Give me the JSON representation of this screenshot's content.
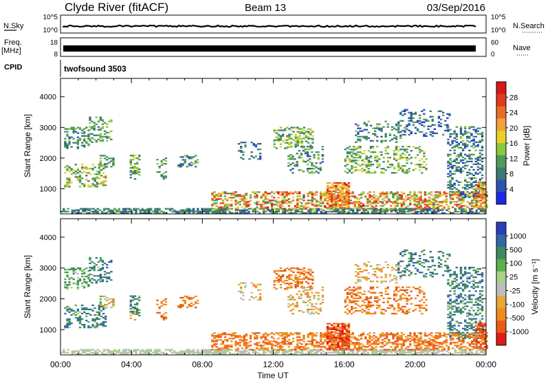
{
  "header": {
    "station": "Clyde River (fitACF)",
    "beam": "Beam 13",
    "date": "03/Sep/2016"
  },
  "strips": {
    "nsky": {
      "label": "N.Sky",
      "ticks_left": [
        "10^5",
        "10^0"
      ]
    },
    "nsearch": {
      "label": "N.Search",
      "ticks_right": [
        "10^5",
        "10^0"
      ]
    },
    "freq": {
      "label_line1": "Freq.",
      "label_line2": "[MHz]",
      "ticks_left": [
        "18",
        "8"
      ]
    },
    "nave": {
      "label": "Nave",
      "ticks_right": [
        "60",
        "0"
      ]
    },
    "cpid": {
      "label": "CPID",
      "value": "twofsound 3503"
    }
  },
  "chart_data": [
    {
      "type": "heatmap",
      "panel": "power",
      "ylabel": "Slant Range [km]",
      "xlabel": "",
      "x_ticks": [
        "00:00",
        "04:00",
        "08:00",
        "12:00",
        "16:00",
        "20:00",
        "00:00"
      ],
      "y_ticks": [
        1000,
        2000,
        3000,
        4000
      ],
      "ylim": [
        180,
        4600
      ],
      "xlim_hours": [
        0,
        24
      ],
      "colorbar": {
        "label": "Power [dB]",
        "ticks": [
          "4",
          "8",
          "12",
          "16",
          "20",
          "24",
          "28"
        ],
        "colors": [
          "#1e2ae0",
          "#2c52b0",
          "#3a7a72",
          "#4f9a58",
          "#8dc63f",
          "#e8d22a",
          "#f2a23a",
          "#ea6d27",
          "#e03a1e",
          "#d61919"
        ]
      }
    },
    {
      "type": "heatmap",
      "panel": "velocity",
      "ylabel": "Slant Range [km]",
      "xlabel": "Time UT",
      "x_ticks": [
        "00:00",
        "04:00",
        "08:00",
        "12:00",
        "16:00",
        "20:00",
        "00:00"
      ],
      "y_ticks": [
        1000,
        2000,
        3000,
        4000
      ],
      "ylim": [
        180,
        4600
      ],
      "xlim_hours": [
        0,
        24
      ],
      "colorbar": {
        "label": "Velocity [m s⁻¹]",
        "ticks": [
          "1000",
          "500",
          "100",
          "25",
          "-25",
          "-100",
          "-500",
          "-1000"
        ],
        "colors": [
          "#2a3fb8",
          "#3566a8",
          "#3f8a5e",
          "#59b04c",
          "#a8d18a",
          "#bdbdbd",
          "#e8a53a",
          "#f08a1e",
          "#ea5a17",
          "#e01b17"
        ]
      }
    }
  ],
  "echo_regions": [
    {
      "t0": 0.0,
      "t1": 24.0,
      "r0": 190,
      "r1": 330,
      "p": [
        6,
        14
      ],
      "v": [
        -25,
        25
      ],
      "d": 0.65
    },
    {
      "t0": 0.2,
      "t1": 2.6,
      "r0": 1050,
      "r1": 1800,
      "p": [
        8,
        20
      ],
      "v": [
        -25,
        500
      ],
      "d": 0.4
    },
    {
      "t0": 0.2,
      "t1": 1.6,
      "r0": 2300,
      "r1": 3000,
      "p": [
        6,
        14
      ],
      "v": [
        -25,
        100
      ],
      "d": 0.35
    },
    {
      "t0": 1.6,
      "t1": 2.9,
      "r0": 2500,
      "r1": 3350,
      "p": [
        8,
        16
      ],
      "v": [
        -25,
        500
      ],
      "d": 0.3
    },
    {
      "t0": 2.2,
      "t1": 3.0,
      "r0": 1700,
      "r1": 2100,
      "p": [
        8,
        16
      ],
      "v": [
        -100,
        100
      ],
      "d": 0.3
    },
    {
      "t0": 3.9,
      "t1": 4.5,
      "r0": 1300,
      "r1": 2100,
      "p": [
        8,
        18
      ],
      "v": [
        -100,
        500
      ],
      "d": 0.45
    },
    {
      "t0": 5.4,
      "t1": 6.0,
      "r0": 1300,
      "r1": 2000,
      "p": [
        8,
        16
      ],
      "v": [
        -500,
        -25
      ],
      "d": 0.35
    },
    {
      "t0": 6.6,
      "t1": 7.8,
      "r0": 1700,
      "r1": 2100,
      "p": [
        6,
        14
      ],
      "v": [
        -500,
        -25
      ],
      "d": 0.3
    },
    {
      "t0": 10.0,
      "t1": 11.3,
      "r0": 1950,
      "r1": 2500,
      "p": [
        4,
        12
      ],
      "v": [
        -100,
        25
      ],
      "d": 0.22
    },
    {
      "t0": 8.5,
      "t1": 24.0,
      "r0": 330,
      "r1": 900,
      "p": [
        10,
        28
      ],
      "v": [
        -500,
        -25
      ],
      "d": 0.5
    },
    {
      "t0": 12.0,
      "t1": 14.2,
      "r0": 2300,
      "r1": 3000,
      "p": [
        8,
        18
      ],
      "v": [
        -500,
        -25
      ],
      "d": 0.35
    },
    {
      "t0": 12.8,
      "t1": 14.8,
      "r0": 1500,
      "r1": 2400,
      "p": [
        6,
        16
      ],
      "v": [
        -100,
        25
      ],
      "d": 0.28
    },
    {
      "t0": 15.0,
      "t1": 16.2,
      "r0": 360,
      "r1": 1200,
      "p": [
        16,
        28
      ],
      "v": [
        -1000,
        -100
      ],
      "d": 0.7
    },
    {
      "t0": 16.0,
      "t1": 20.6,
      "r0": 1500,
      "r1": 2400,
      "p": [
        8,
        18
      ],
      "v": [
        -500,
        -25
      ],
      "d": 0.33
    },
    {
      "t0": 16.6,
      "t1": 19.2,
      "r0": 2500,
      "r1": 3200,
      "p": [
        6,
        14
      ],
      "v": [
        -100,
        25
      ],
      "d": 0.22
    },
    {
      "t0": 19.0,
      "t1": 22.0,
      "r0": 2700,
      "r1": 3600,
      "p": [
        4,
        12
      ],
      "v": [
        25,
        500
      ],
      "d": 0.25
    },
    {
      "t0": 21.8,
      "t1": 23.8,
      "r0": 700,
      "r1": 3000,
      "p": [
        4,
        14
      ],
      "v": [
        -25,
        500
      ],
      "d": 0.35
    },
    {
      "t0": 23.4,
      "t1": 24.0,
      "r0": 330,
      "r1": 1200,
      "p": [
        12,
        28
      ],
      "v": [
        -1000,
        -100
      ],
      "d": 0.55
    }
  ]
}
